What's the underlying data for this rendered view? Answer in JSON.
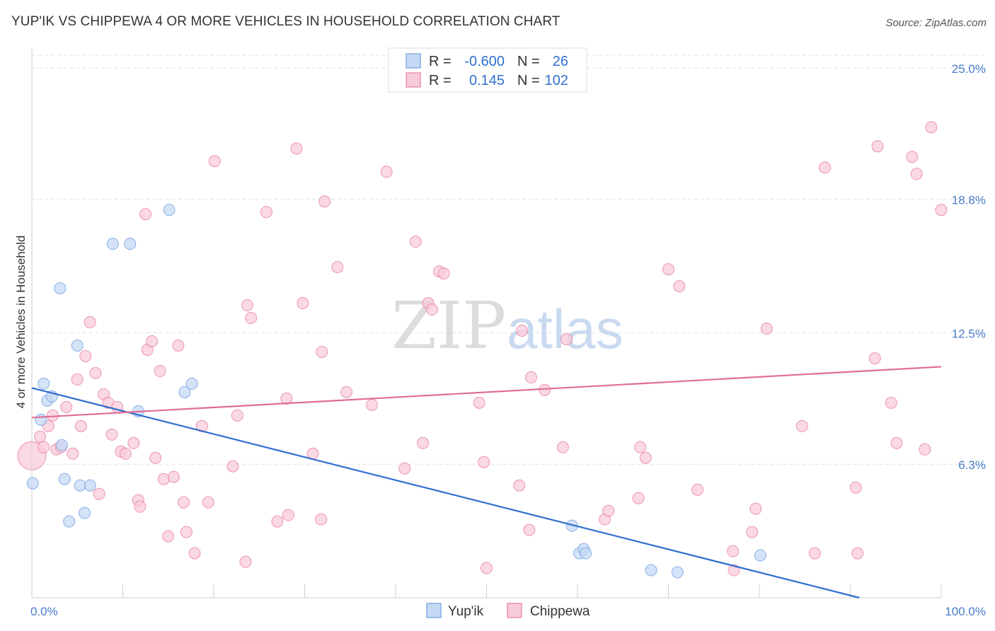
{
  "title": "YUP'IK VS CHIPPEWA 4 OR MORE VEHICLES IN HOUSEHOLD CORRELATION CHART",
  "source": "Source: ZipAtlas.com",
  "watermark": {
    "zip": "ZIP",
    "atlas": "atlas"
  },
  "chart_data": {
    "type": "scatter",
    "ylabel": "4 or more Vehicles in Household",
    "x_tick_labels": [
      "0.0%",
      "100.0%"
    ],
    "y_tick_labels": [
      "25.0%",
      "18.8%",
      "12.5%",
      "6.3%"
    ],
    "y_ticks": [
      25.0,
      18.8,
      12.5,
      6.3
    ],
    "xlim": [
      0,
      100
    ],
    "ylim": [
      0,
      25.6
    ],
    "colors": {
      "yupik": "#6f9fe0",
      "yupik_fill": "#c5d9f4",
      "chippewa": "#e87ea1",
      "chippewa_fill": "#f8cbdb",
      "yupik_line": "#2f6fcf",
      "chippewa_line": "#e06d96"
    },
    "legend": {
      "rows": [
        {
          "r_label": "R =",
          "r_value": "-0.600",
          "n_label": "N =",
          "n_value": "26"
        },
        {
          "r_label": "R =",
          "r_value": "0.145",
          "n_label": "N =",
          "n_value": "102"
        }
      ]
    },
    "series": [
      {
        "name": "Yup'ik",
        "trend": {
          "x": [
            0,
            91
          ],
          "y": [
            9.9,
            0.0
          ]
        },
        "points": [
          [
            0.1,
            5.4
          ],
          [
            1.0,
            8.4
          ],
          [
            1.3,
            10.1
          ],
          [
            1.7,
            9.3
          ],
          [
            2.2,
            9.5
          ],
          [
            3.1,
            14.6
          ],
          [
            3.3,
            7.2
          ],
          [
            3.6,
            5.6
          ],
          [
            4.1,
            3.6
          ],
          [
            5.0,
            11.9
          ],
          [
            5.3,
            5.3
          ],
          [
            5.8,
            4.0
          ],
          [
            6.4,
            5.3
          ],
          [
            8.9,
            16.7
          ],
          [
            10.8,
            16.7
          ],
          [
            11.7,
            8.8
          ],
          [
            15.1,
            18.3
          ],
          [
            16.8,
            9.7
          ],
          [
            17.6,
            10.1
          ],
          [
            59.4,
            3.4
          ],
          [
            60.2,
            2.1
          ],
          [
            60.7,
            2.3
          ],
          [
            60.9,
            2.1
          ],
          [
            68.1,
            1.3
          ],
          [
            71.0,
            1.2
          ],
          [
            80.1,
            2.0
          ]
        ]
      },
      {
        "name": "Chippewa",
        "trend": {
          "x": [
            0,
            100
          ],
          "y": [
            8.5,
            10.9
          ]
        },
        "points": [
          [
            0.0,
            6.7
          ],
          [
            0.9,
            7.6
          ],
          [
            1.3,
            7.1
          ],
          [
            1.8,
            8.1
          ],
          [
            2.3,
            8.6
          ],
          [
            2.7,
            7.0
          ],
          [
            3.2,
            7.1
          ],
          [
            3.8,
            9.0
          ],
          [
            4.5,
            6.8
          ],
          [
            5.0,
            10.3
          ],
          [
            5.4,
            8.1
          ],
          [
            5.9,
            11.4
          ],
          [
            6.4,
            13.0
          ],
          [
            7.0,
            10.6
          ],
          [
            7.4,
            4.9
          ],
          [
            7.9,
            9.6
          ],
          [
            8.4,
            9.2
          ],
          [
            8.8,
            7.7
          ],
          [
            9.4,
            9.0
          ],
          [
            9.8,
            6.9
          ],
          [
            10.3,
            6.8
          ],
          [
            11.2,
            7.3
          ],
          [
            11.7,
            4.6
          ],
          [
            11.9,
            4.3
          ],
          [
            12.5,
            18.1
          ],
          [
            12.7,
            11.7
          ],
          [
            13.2,
            12.1
          ],
          [
            13.6,
            6.6
          ],
          [
            14.1,
            10.7
          ],
          [
            14.5,
            5.6
          ],
          [
            15.0,
            2.9
          ],
          [
            15.6,
            5.7
          ],
          [
            16.1,
            11.9
          ],
          [
            16.7,
            4.5
          ],
          [
            17.0,
            3.1
          ],
          [
            17.9,
            2.1
          ],
          [
            18.7,
            8.1
          ],
          [
            19.4,
            4.5
          ],
          [
            20.1,
            20.6
          ],
          [
            22.1,
            6.2
          ],
          [
            22.6,
            8.6
          ],
          [
            23.5,
            1.7
          ],
          [
            23.7,
            13.8
          ],
          [
            24.1,
            13.2
          ],
          [
            25.8,
            18.2
          ],
          [
            27.0,
            3.6
          ],
          [
            28.0,
            9.4
          ],
          [
            28.2,
            3.9
          ],
          [
            29.1,
            21.2
          ],
          [
            29.8,
            13.9
          ],
          [
            30.9,
            6.8
          ],
          [
            31.8,
            3.7
          ],
          [
            31.9,
            11.6
          ],
          [
            32.2,
            18.7
          ],
          [
            33.6,
            15.6
          ],
          [
            34.6,
            9.7
          ],
          [
            37.4,
            9.1
          ],
          [
            39.0,
            20.1
          ],
          [
            41.0,
            6.1
          ],
          [
            42.2,
            16.8
          ],
          [
            43.0,
            7.3
          ],
          [
            43.6,
            13.9
          ],
          [
            44.0,
            13.6
          ],
          [
            44.8,
            15.4
          ],
          [
            45.3,
            15.3
          ],
          [
            49.2,
            9.2
          ],
          [
            49.7,
            6.4
          ],
          [
            50.0,
            1.4
          ],
          [
            53.6,
            5.3
          ],
          [
            53.9,
            12.6
          ],
          [
            54.7,
            3.2
          ],
          [
            54.9,
            10.4
          ],
          [
            56.4,
            9.8
          ],
          [
            58.4,
            7.1
          ],
          [
            58.8,
            12.2
          ],
          [
            63.0,
            3.7
          ],
          [
            63.4,
            4.1
          ],
          [
            66.7,
            4.7
          ],
          [
            66.9,
            7.1
          ],
          [
            67.5,
            6.6
          ],
          [
            70.0,
            15.5
          ],
          [
            71.2,
            14.7
          ],
          [
            73.2,
            5.1
          ],
          [
            77.1,
            2.2
          ],
          [
            77.2,
            1.3
          ],
          [
            79.2,
            3.1
          ],
          [
            79.6,
            4.2
          ],
          [
            80.8,
            12.7
          ],
          [
            84.7,
            8.1
          ],
          [
            86.1,
            2.1
          ],
          [
            87.2,
            20.3
          ],
          [
            90.6,
            5.2
          ],
          [
            90.8,
            2.1
          ],
          [
            92.7,
            11.3
          ],
          [
            93.0,
            21.3
          ],
          [
            94.5,
            9.2
          ],
          [
            95.1,
            7.3
          ],
          [
            96.8,
            20.8
          ],
          [
            97.3,
            20.0
          ],
          [
            98.2,
            7.0
          ],
          [
            98.9,
            22.2
          ],
          [
            100.0,
            18.3
          ]
        ]
      }
    ]
  }
}
